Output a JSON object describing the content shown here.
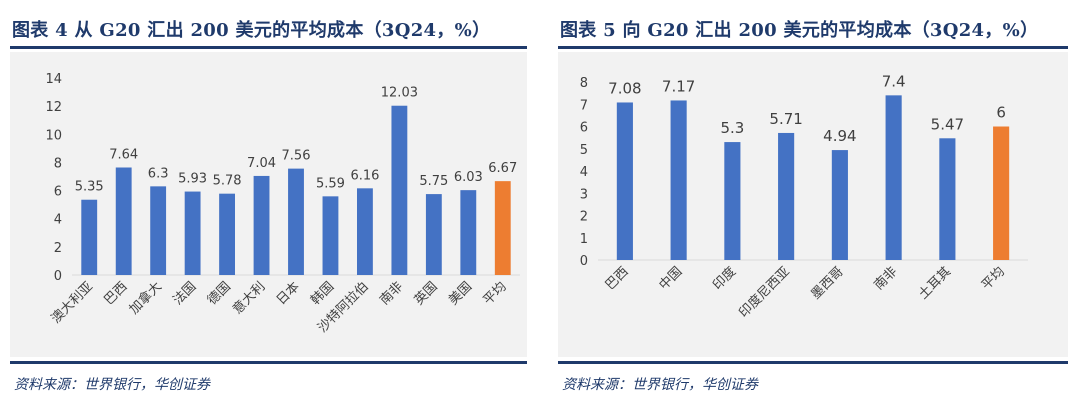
{
  "colors": {
    "bar": "#4472c4",
    "highlight": "#ed7d31",
    "title": "#1f3a6b",
    "axis": "#d9d9d9",
    "text": "#404040"
  },
  "figures": [
    {
      "title": "图表 4 从 G20 汇出 200 美元的平均成本（3Q24，%）",
      "source": "资料来源：世界银行，华创证券"
    },
    {
      "title": "图表 5 向 G20 汇出 200 美元的平均成本（3Q24，%）",
      "source": "资料来源：世界银行，华创证券"
    }
  ],
  "chart_data": [
    {
      "type": "bar",
      "title": "",
      "categories": [
        "澳大利亚",
        "巴西",
        "加拿大",
        "法国",
        "德国",
        "意大利",
        "日本",
        "韩国",
        "沙特阿拉伯",
        "南非",
        "英国",
        "美国",
        "平均"
      ],
      "values": [
        5.35,
        7.64,
        6.3,
        5.93,
        5.78,
        7.04,
        7.56,
        5.59,
        6.16,
        12.03,
        5.75,
        6.03,
        6.67
      ],
      "value_labels": [
        "5.35",
        "7.64",
        "6.3",
        "5.93",
        "5.78",
        "7.04",
        "7.56",
        "5.59",
        "6.16",
        "12.03",
        "5.75",
        "6.03",
        "6.67"
      ],
      "yticks": [
        "0",
        "2",
        "4",
        "6",
        "8",
        "10",
        "12",
        "14"
      ],
      "ylim": [
        0,
        14
      ],
      "highlight_category": "平均",
      "grid": false,
      "legend": "none"
    },
    {
      "type": "bar",
      "title": "",
      "categories": [
        "巴西",
        "中国",
        "印度",
        "印度尼西亚",
        "墨西哥",
        "南非",
        "土耳其",
        "平均"
      ],
      "values": [
        7.08,
        7.17,
        5.3,
        5.71,
        4.94,
        7.4,
        5.47,
        6
      ],
      "value_labels": [
        "7.08",
        "7.17",
        "5.3",
        "5.71",
        "4.94",
        "7.4",
        "5.47",
        "6"
      ],
      "yticks": [
        "0",
        "1",
        "2",
        "3",
        "4",
        "5",
        "6",
        "7",
        "8"
      ],
      "ylim": [
        0,
        8
      ],
      "highlight_category": "平均",
      "grid": false,
      "legend": "none"
    }
  ]
}
